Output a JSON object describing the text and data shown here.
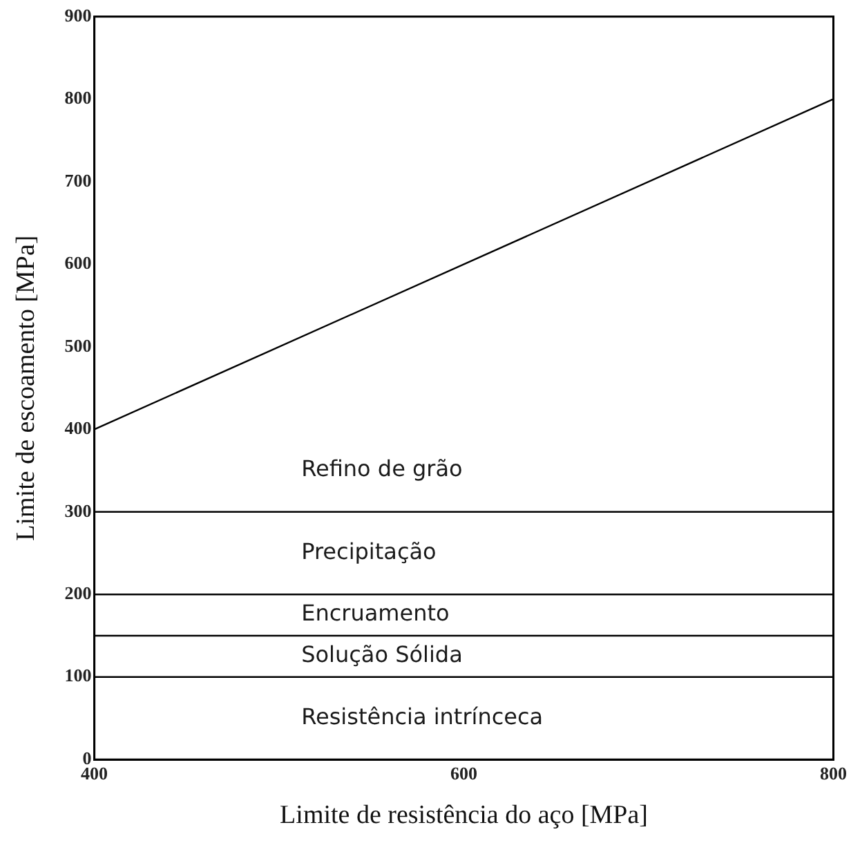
{
  "chart_data": {
    "type": "line",
    "xlabel": "Limite de resistência do aço [MPa]",
    "ylabel": "Limite de escoamento [MPa]",
    "series": [
      {
        "color": "#000000",
        "x": [
          400,
          800
        ],
        "values": [
          400,
          800
        ]
      }
    ],
    "xlim": [
      400,
      800
    ],
    "xticks": [
      400,
      600,
      800
    ],
    "ylim": [
      0,
      900
    ],
    "yticks": [
      0,
      100,
      200,
      300,
      400,
      500,
      600,
      700,
      800,
      900
    ],
    "ref_lines": [
      {
        "axis": "y",
        "value": 100,
        "color": "#000000"
      },
      {
        "axis": "y",
        "value": 150,
        "color": "#000000"
      },
      {
        "axis": "y",
        "value": 200,
        "color": "#000000"
      },
      {
        "axis": "y",
        "value": 300,
        "color": "#000000"
      }
    ],
    "annotations": [
      "Refino de grão",
      "Precipitação",
      "Encruamento",
      "Solução Sólida",
      "Resistência intrínceca"
    ],
    "grid": false,
    "legend": false,
    "marker": "none",
    "line_style": "solid"
  }
}
